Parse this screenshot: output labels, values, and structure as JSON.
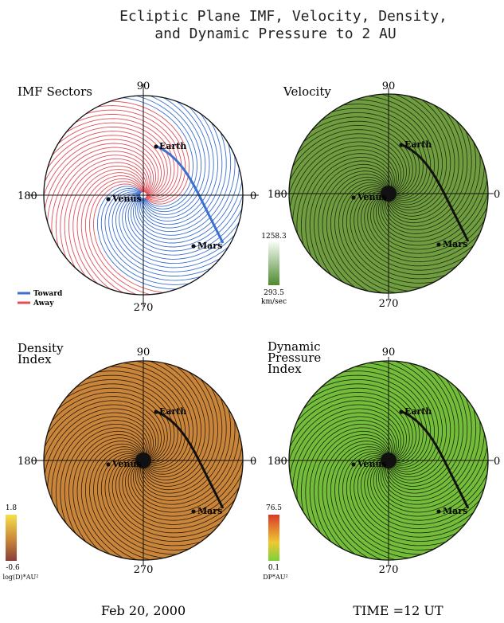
{
  "title_line1": "Ecliptic Plane IMF, Velocity, Density,",
  "title_line2": "and Dynamic Pressure to  2 AU",
  "date": "Feb 20, 2000",
  "time": "TIME =12 UT",
  "panels": [
    {
      "id": "imf",
      "label": [
        "IMF Sectors"
      ],
      "angles": {
        "top": "90",
        "left": "180",
        "right": "0",
        "bottom": "270"
      },
      "planets": [
        "Earth",
        "Venus",
        "Mars"
      ],
      "legend": {
        "toward": "Toward",
        "away": "Away",
        "toward_color": "#3b6fd0",
        "away_color": "#e0505a"
      }
    },
    {
      "id": "velocity",
      "label": [
        "Velocity"
      ],
      "angles": {
        "top": "90",
        "left": "180",
        "right": "0",
        "bottom": "270"
      },
      "planets": [
        "Earth",
        "Venus",
        "Mars"
      ],
      "scale": {
        "max": "1258.3",
        "min": "293.5",
        "unit": "km/sec",
        "top_color": "#f4fbf4",
        "bottom_color": "#4e8a2e"
      },
      "fill": "#6f9d3f"
    },
    {
      "id": "density",
      "label": [
        "Density",
        "Index"
      ],
      "angles": {
        "top": "90",
        "left": "180",
        "right": "0",
        "bottom": "270"
      },
      "planets": [
        "Earth",
        "Venus",
        "Mars"
      ],
      "scale": {
        "max": "1.8",
        "min": "-0.6",
        "unit": "log(D)*AU²",
        "top_color": "#f6e04a",
        "bottom_color": "#8a3f3a"
      },
      "fill": "#c9853a"
    },
    {
      "id": "pressure",
      "label": [
        "Dynamic",
        "Pressure",
        "Index"
      ],
      "angles": {
        "top": "90",
        "left": "180",
        "right": "0",
        "bottom": "270"
      },
      "planets": [
        "Earth",
        "Venus",
        "Mars"
      ],
      "scale": {
        "max": "76.5",
        "min": "0.1",
        "unit": "DP*AU²",
        "top_color": "#d83a2a",
        "bottom_color": "#7bd23a"
      },
      "fill": "#74bd3a"
    }
  ]
}
